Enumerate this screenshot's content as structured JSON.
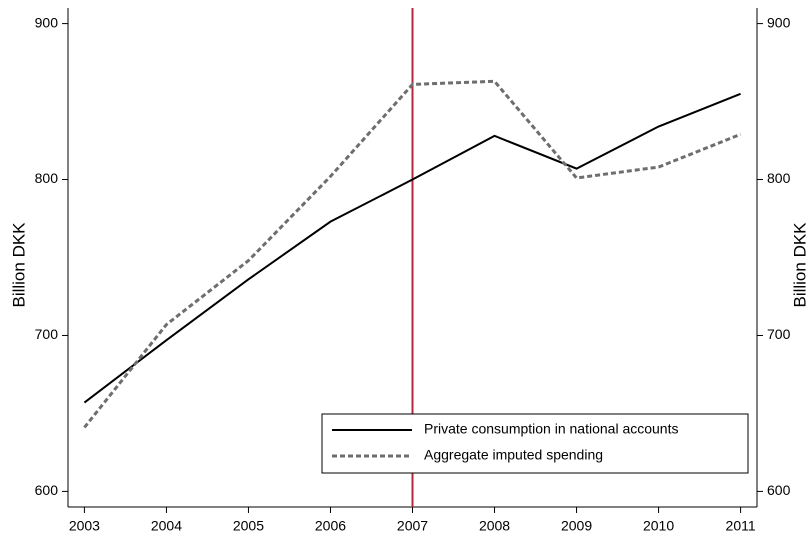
{
  "chart_data": {
    "type": "line",
    "x": [
      2003,
      2004,
      2005,
      2006,
      2007,
      2008,
      2009,
      2010,
      2011
    ],
    "series": [
      {
        "name": "Private consumption in national accounts",
        "color": "#000000",
        "dash": "solid",
        "values": [
          657,
          697,
          736,
          773,
          800,
          828,
          807,
          834,
          855
        ]
      },
      {
        "name": "Aggregate imputed spending",
        "color": "#6e6e6e",
        "dash": "dashed",
        "values": [
          641,
          707,
          748,
          802,
          861,
          863,
          801,
          808,
          829
        ]
      }
    ],
    "xlim": [
      2002.8,
      2011.2
    ],
    "xticks": [
      2003,
      2004,
      2005,
      2006,
      2007,
      2008,
      2009,
      2010,
      2011
    ],
    "ylim": [
      590,
      910
    ],
    "yticks": [
      600,
      700,
      800,
      900
    ],
    "y2lim": [
      590,
      910
    ],
    "y2ticks": [
      600,
      700,
      800,
      900
    ],
    "ylabel": "Billion DKK",
    "y2label": "Billion DKK",
    "vline": {
      "x": 2007,
      "color": "#b5283c"
    },
    "legend": "lower right"
  }
}
